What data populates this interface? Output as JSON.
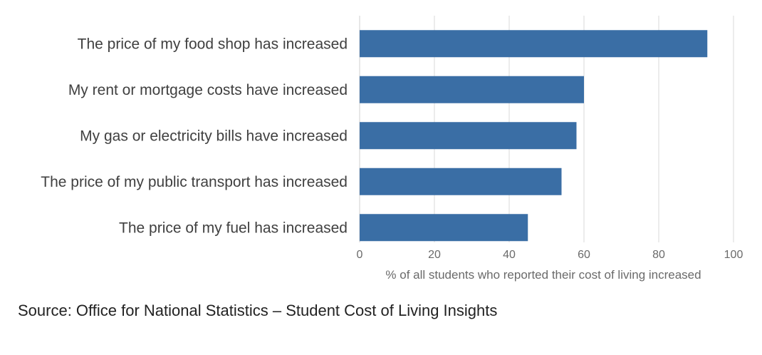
{
  "chart_data": {
    "type": "bar",
    "orientation": "horizontal",
    "categories": [
      "The price of my food shop has increased",
      "My rent or mortgage costs have increased",
      "My gas or electricity bills have increased",
      "The price of my public transport has increased",
      "The price of my fuel has increased"
    ],
    "values": [
      93,
      60,
      58,
      54,
      45
    ],
    "xlabel": "% of all students who reported their cost of living increased",
    "ylabel": "",
    "xlim": [
      0,
      100
    ],
    "xticks": [
      0,
      20,
      40,
      60,
      80,
      100
    ],
    "grid": true,
    "bar_color": "#3a6ea5"
  },
  "source_text": "Source: Office for National Statistics – Student Cost of Living Insights"
}
